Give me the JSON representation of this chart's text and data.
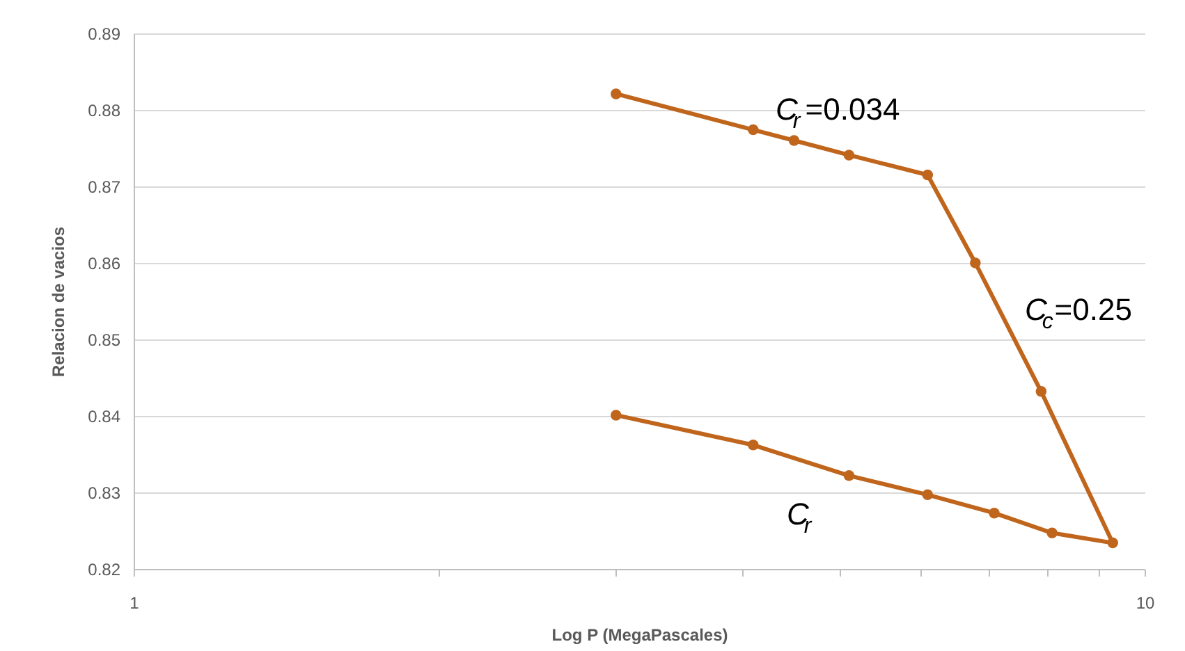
{
  "chart_data": {
    "type": "line",
    "xlabel": "Log P (MegaPascales)",
    "ylabel": "Relacion de vacios",
    "log": "x",
    "xlim": [
      1,
      10
    ],
    "ylim": [
      0.82,
      0.89
    ],
    "xticks": [
      1,
      {
        "value": 2,
        "label": null
      },
      {
        "value": 3,
        "label": null
      },
      {
        "value": 4,
        "label": null
      },
      {
        "value": 5,
        "label": null
      },
      {
        "value": 6,
        "label": null
      },
      {
        "value": 7,
        "label": null
      },
      {
        "value": 8,
        "label": null
      },
      {
        "value": 9,
        "label": null
      },
      10
    ],
    "yticks": [
      0.82,
      0.83,
      0.84,
      0.85,
      0.86,
      0.87,
      0.88,
      0.89
    ],
    "grid": "y",
    "marker": "circle",
    "line_style": "solid",
    "series": [
      {
        "color": "#c0651c",
        "x": [
          3,
          4.1,
          4.5,
          5.1,
          6.1,
          6.8,
          7.9,
          9.3,
          8.1,
          7.1,
          6.1,
          5.1,
          4.1,
          3
        ],
        "values": [
          0.8821,
          0.8774,
          0.876,
          0.8741,
          0.8715,
          0.86,
          0.8432,
          0.8234,
          0.8247,
          0.8273,
          0.8297,
          0.8322,
          0.8362,
          0.8401
        ]
      }
    ],
    "annotations": [
      "C$_{r}$=0.034",
      "C$_{c}$=0.25",
      "C$_{r}$"
    ]
  }
}
